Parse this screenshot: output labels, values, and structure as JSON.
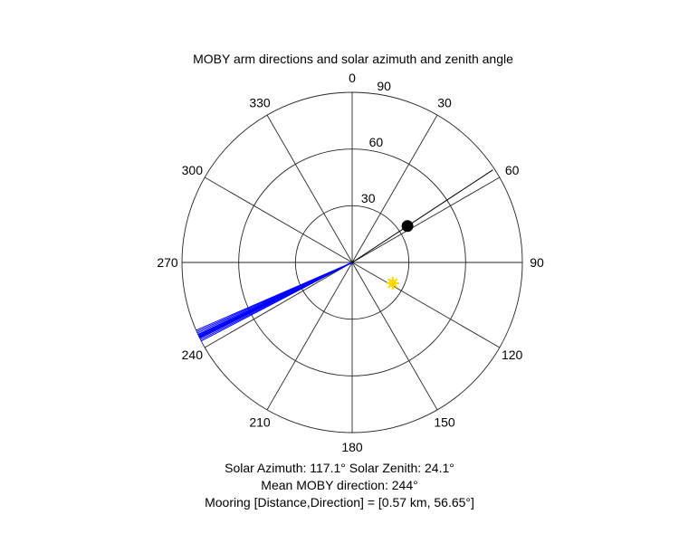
{
  "chart_data": {
    "type": "polar",
    "title": "MOBY arm directions and solar azimuth and zenith angle",
    "theta_orientation": "clockwise from top (0 = North)",
    "theta_ticks": [
      "0",
      "30",
      "60",
      "90",
      "120",
      "150",
      "180",
      "210",
      "240",
      "270",
      "300",
      "330"
    ],
    "radial_ticks": [
      "30",
      "60",
      "90"
    ],
    "r_labels_dir": "outward from center is 90 at center? see rings",
    "rmax": 90,
    "moby_arm_directions_deg": [
      244,
      243.5,
      244.5,
      245,
      243,
      246,
      242.5,
      245.5,
      244.2,
      243.8,
      246.5,
      244.8
    ],
    "mooring_point": {
      "direction_deg": 56.65,
      "zenith_deg": 35
    },
    "sun_point": {
      "azimuth_deg": 117.1,
      "zenith_deg": 24.1
    },
    "colors": {
      "arms": "#0000ff",
      "mooring": "#000000",
      "sun": "#ffd700"
    }
  },
  "captions": {
    "line1": "Solar Azimuth: 117.1°    Solar Zenith: 24.1°",
    "line2": "Mean MOBY direction: 244°",
    "line3": "Mooring [Distance,Direction] = [0.57 km, 56.65°]"
  }
}
